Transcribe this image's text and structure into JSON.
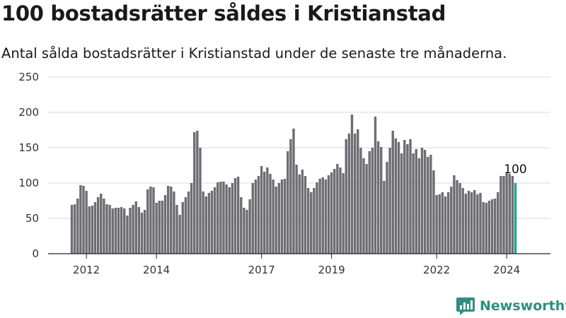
{
  "header": {
    "title": "100 bostadsrätter såldes i Kristianstad",
    "subtitle": "Antal sålda bostadsrätter i Kristianstad under de senaste tre månaderna."
  },
  "brand": {
    "name": "Newsworthy",
    "icon": "newsworthy-logo-icon",
    "color": "#2f8f7f"
  },
  "chart_data": {
    "type": "bar",
    "bar_color": "#6e6d73",
    "highlight_color": "#1aa58f",
    "start": "2011-08",
    "ylim": [
      0,
      250
    ],
    "yticks": [
      0,
      50,
      100,
      150,
      200,
      250
    ],
    "xticks": [
      "2012",
      "2014",
      "2017",
      "2019",
      "2022",
      "2024"
    ],
    "values": [
      69,
      70,
      78,
      97,
      96,
      89,
      67,
      68,
      73,
      80,
      85,
      78,
      70,
      69,
      64,
      65,
      65,
      66,
      64,
      54,
      65,
      69,
      74,
      66,
      58,
      62,
      91,
      95,
      94,
      72,
      75,
      75,
      83,
      96,
      95,
      88,
      69,
      55,
      73,
      80,
      88,
      100,
      172,
      174,
      150,
      88,
      81,
      86,
      89,
      94,
      101,
      102,
      102,
      98,
      94,
      100,
      107,
      109,
      80,
      65,
      62,
      77,
      100,
      105,
      110,
      124,
      116,
      122,
      113,
      105,
      95,
      100,
      105,
      106,
      145,
      162,
      177,
      126,
      112,
      119,
      110,
      93,
      87,
      93,
      101,
      106,
      108,
      105,
      111,
      115,
      120,
      127,
      122,
      114,
      162,
      170,
      197,
      170,
      176,
      150,
      135,
      127,
      145,
      150,
      194,
      159,
      151,
      103,
      130,
      150,
      174,
      163,
      158,
      142,
      161,
      155,
      162,
      142,
      148,
      135,
      150,
      147,
      137,
      140,
      118,
      83,
      84,
      87,
      81,
      87,
      95,
      111,
      104,
      100,
      93,
      85,
      89,
      87,
      90,
      84,
      86,
      73,
      72,
      75,
      77,
      78,
      87,
      110,
      110,
      114,
      113,
      110,
      100
    ],
    "annotation": {
      "label": "100"
    }
  }
}
